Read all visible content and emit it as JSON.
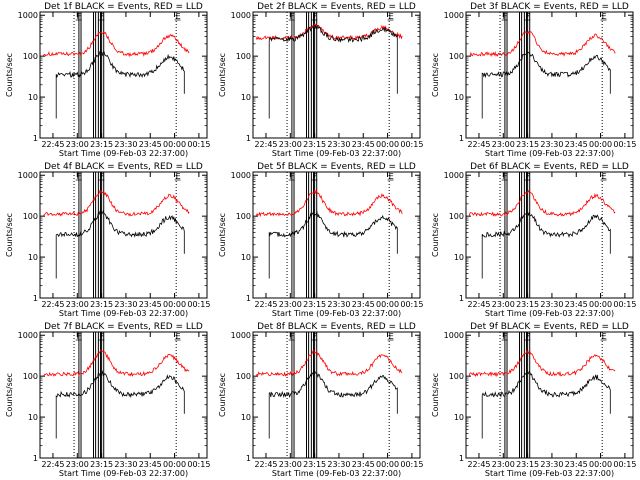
{
  "chart_data": [
    {
      "type": "line",
      "title": "Det 1f BLACK = Events, RED = LLD",
      "panel": 1,
      "red_level": "high",
      "black_level": "mid"
    },
    {
      "type": "line",
      "title": "Det 2f BLACK = Events, RED = LLD",
      "panel": 2,
      "red_level": "overlap",
      "black_level": "overlap"
    },
    {
      "type": "line",
      "title": "Det 3f BLACK = Events, RED = LLD",
      "panel": 3,
      "red_level": "high",
      "black_level": "mid"
    },
    {
      "type": "line",
      "title": "Det 4f BLACK = Events, RED = LLD",
      "panel": 4,
      "red_level": "high",
      "black_level": "mid"
    },
    {
      "type": "line",
      "title": "Det 5f BLACK = Events, RED = LLD",
      "panel": 5,
      "red_level": "high",
      "black_level": "mid"
    },
    {
      "type": "line",
      "title": "Det 6f BLACK = Events, RED = LLD",
      "panel": 6,
      "red_level": "high",
      "black_level": "mid"
    },
    {
      "type": "line",
      "title": "Det 7f BLACK = Events, RED = LLD",
      "panel": 7,
      "red_level": "high",
      "black_level": "mid"
    },
    {
      "type": "line",
      "title": "Det 8f BLACK = Events, RED = LLD",
      "panel": 8,
      "red_level": "high",
      "black_level": "mid"
    },
    {
      "type": "line",
      "title": "Det 9f BLACK = Events, RED = LLD",
      "panel": 9,
      "red_level": "high",
      "black_level": "mid"
    }
  ],
  "shared": {
    "ylabel": "Counts/sec",
    "xlabel": "Start Time (09-Feb-03 22:37:00)",
    "x_ticks": [
      "22:45",
      "23:00",
      "23:15",
      "23:30",
      "23:45",
      "00:00",
      "00:15"
    ],
    "y_ticks": [
      "1",
      "10",
      "100",
      "1000"
    ],
    "y_scale": "log",
    "ylim": [
      1,
      1200
    ],
    "colors": {
      "events": "#000000",
      "lld": "#ff0000"
    },
    "markers": [
      "F",
      "F",
      "E"
    ],
    "black_solid_lines_minutes": [
      24,
      33,
      36,
      38
    ],
    "dotted_lines_minutes": [
      21,
      84
    ]
  }
}
